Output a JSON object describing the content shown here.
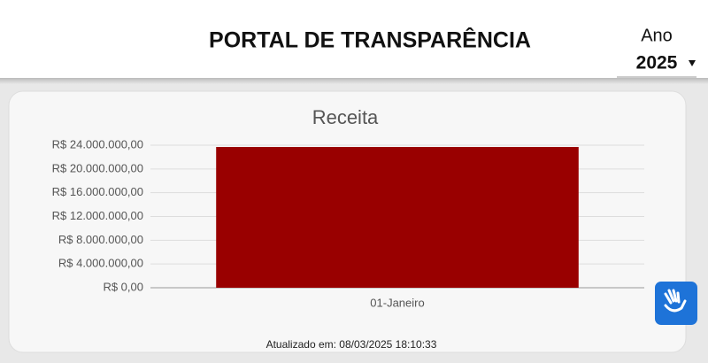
{
  "header": {
    "title": "PORTAL DE TRANSPARÊNCIA",
    "year_label": "Ano",
    "year_value": "2025"
  },
  "chart_data": {
    "type": "bar",
    "title": "Receita",
    "categories": [
      "01-Janeiro"
    ],
    "values": [
      23700000
    ],
    "color": "#990000",
    "ylim": [
      0,
      24000000
    ],
    "yticks": [
      {
        "value": 0,
        "label": "R$ 0,00"
      },
      {
        "value": 4000000,
        "label": "R$ 4.000.000,00"
      },
      {
        "value": 8000000,
        "label": "R$ 8.000.000,00"
      },
      {
        "value": 12000000,
        "label": "R$ 12.000.000,00"
      },
      {
        "value": 16000000,
        "label": "R$ 16.000.000,00"
      },
      {
        "value": 20000000,
        "label": "R$ 20.000.000,00"
      },
      {
        "value": 24000000,
        "label": "R$ 24.000.000,00"
      }
    ],
    "grid": true
  },
  "footer": {
    "updated": "Atualizado em: 08/03/2025 18:10:33"
  }
}
